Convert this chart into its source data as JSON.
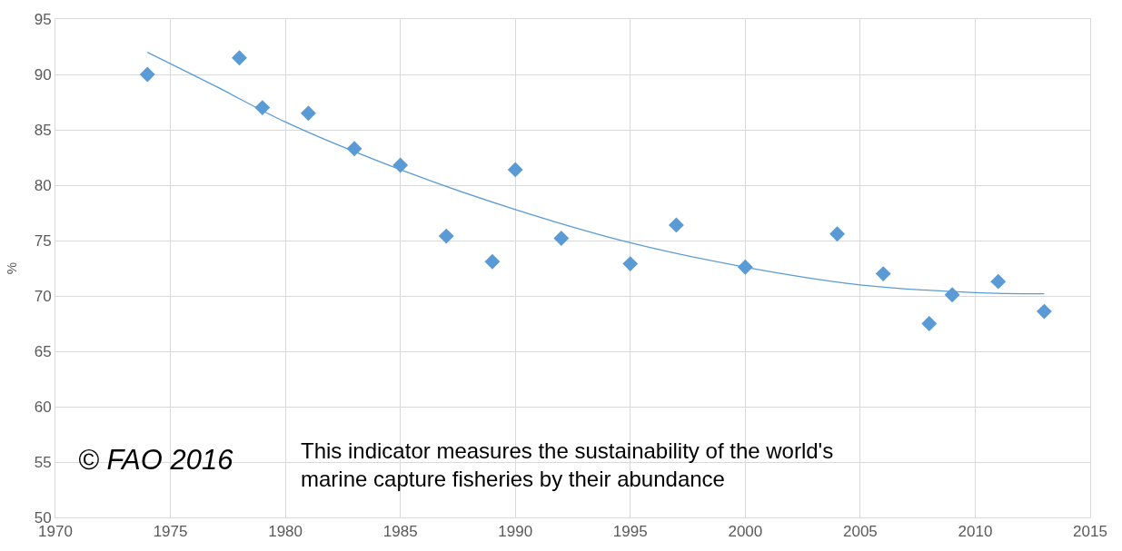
{
  "chart_data": {
    "type": "scatter",
    "ylabel": "%",
    "x": [
      1974,
      1978,
      1979,
      1981,
      1983,
      1985,
      1987,
      1989,
      1990,
      1992,
      1995,
      1997,
      2000,
      2004,
      2006,
      2008,
      2009,
      2011,
      2013
    ],
    "series": [
      {
        "color": "#5b9bd5",
        "marker": "diamond",
        "values": [
          90.0,
          91.5,
          87.0,
          86.5,
          83.3,
          81.8,
          75.4,
          73.1,
          81.4,
          75.2,
          72.9,
          76.4,
          72.6,
          75.6,
          72.0,
          67.5,
          70.1,
          71.3,
          68.6
        ]
      },
      {
        "type": "line",
        "color": "#5b9bd5",
        "marker": "none",
        "x": [
          1974,
          1977,
          1980,
          1985,
          1990,
          1995,
          2000,
          2005,
          2010,
          2013
        ],
        "values": [
          92.0,
          88.9,
          85.7,
          81.4,
          77.8,
          74.8,
          72.6,
          71.0,
          70.3,
          70.2
        ]
      }
    ],
    "xlim": [
      1970,
      2015
    ],
    "xticks": [
      1970,
      1975,
      1980,
      1985,
      1990,
      1995,
      2000,
      2005,
      2010,
      2015
    ],
    "ylim": [
      50,
      95
    ],
    "yticks": [
      50,
      55,
      60,
      65,
      70,
      75,
      80,
      85,
      90,
      95
    ],
    "grid": true,
    "legend": false,
    "annotations": [
      "© FAO 2016",
      "This indicator measures the sustainability of the world's marine capture fisheries by their abundance"
    ]
  }
}
